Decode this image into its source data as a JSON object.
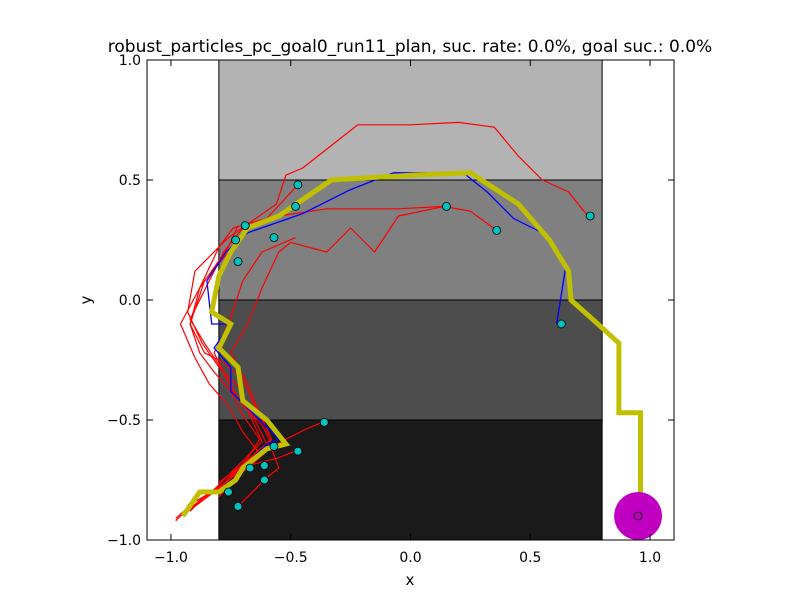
{
  "chart_data": {
    "type": "line",
    "title": "robust_particles_pc_goal0_run11_plan, suc. rate: 0.0%, goal suc.: 0.0%",
    "xlabel": "x",
    "ylabel": "y",
    "xlim": [
      -1.1,
      1.1
    ],
    "ylim": [
      -1.0,
      1.0
    ],
    "xticks": [
      "−1.0",
      "−0.5",
      "0.0",
      "0.5",
      "1.0"
    ],
    "yticks": [
      "−1.0",
      "−0.5",
      "0.0",
      "0.5",
      "1.0"
    ],
    "xtick_values": [
      -1.0,
      -0.5,
      0.0,
      0.5,
      1.0
    ],
    "ytick_values": [
      -1.0,
      -0.5,
      0.0,
      0.5,
      1.0
    ],
    "grid": false,
    "regions": [
      {
        "x": [
          -0.8,
          0.8
        ],
        "y": [
          0.5,
          1.0
        ],
        "color": "#b3b3b3"
      },
      {
        "x": [
          -0.8,
          0.8
        ],
        "y": [
          0.0,
          0.5
        ],
        "color": "#808080"
      },
      {
        "x": [
          -0.8,
          0.8
        ],
        "y": [
          -0.5,
          0.0
        ],
        "color": "#4d4d4d"
      },
      {
        "x": [
          -0.8,
          0.8
        ],
        "y": [
          -1.0,
          -0.5
        ],
        "color": "#1a1a1a"
      }
    ],
    "goal": {
      "x": 0.95,
      "y": -0.9,
      "radius": 0.1,
      "color": "#c000c0"
    },
    "plan": {
      "color": "#c0c000",
      "x": [
        -0.95,
        -0.88,
        -0.8,
        -0.73,
        -0.7,
        -0.6,
        -0.52,
        -0.6,
        -0.7,
        -0.72,
        -0.8,
        -0.75,
        -0.83,
        -0.8,
        -0.75,
        -0.68,
        -0.55,
        -0.33,
        0.0,
        0.25,
        0.45,
        0.58,
        0.66,
        0.67,
        0.76,
        0.87,
        0.87,
        0.96,
        0.96
      ],
      "y": [
        -0.9,
        -0.8,
        -0.8,
        -0.75,
        -0.7,
        -0.62,
        -0.6,
        -0.5,
        -0.42,
        -0.28,
        -0.2,
        -0.1,
        -0.05,
        0.1,
        0.2,
        0.3,
        0.35,
        0.5,
        0.52,
        0.53,
        0.4,
        0.25,
        0.12,
        0.0,
        -0.08,
        -0.18,
        -0.47,
        -0.47,
        -0.9
      ]
    },
    "blue_path": {
      "color": "#0000ff",
      "x": [
        -0.95,
        -0.88,
        -0.8,
        -0.72,
        -0.68,
        -0.6,
        -0.55,
        -0.68,
        -0.75,
        -0.75,
        -0.82,
        -0.75,
        -0.83,
        -0.85,
        -0.77,
        -0.68,
        -0.45,
        -0.25,
        -0.07,
        0.22,
        0.32,
        0.43,
        0.57,
        0.65,
        0.61
      ],
      "y": [
        -0.9,
        -0.8,
        -0.8,
        -0.73,
        -0.68,
        -0.6,
        -0.58,
        -0.45,
        -0.38,
        -0.28,
        -0.2,
        -0.1,
        -0.1,
        0.08,
        0.2,
        0.28,
        0.36,
        0.46,
        0.53,
        0.53,
        0.45,
        0.34,
        0.27,
        0.15,
        -0.1
      ]
    },
    "red_paths": [
      {
        "x": [
          -0.98,
          -0.9,
          -0.83,
          -0.75,
          -0.7,
          -0.62,
          -0.68,
          -0.74,
          -0.8,
          -0.86,
          -0.92,
          -0.78,
          -0.7
        ],
        "y": [
          -0.92,
          -0.84,
          -0.8,
          -0.72,
          -0.67,
          -0.59,
          -0.46,
          -0.38,
          -0.27,
          -0.18,
          -0.08,
          0.2,
          0.3
        ]
      },
      {
        "x": [
          -0.96,
          -0.86,
          -0.8,
          -0.72,
          -0.65,
          -0.58,
          -0.64,
          -0.7,
          -0.78,
          -0.86,
          -0.92,
          -0.88,
          -0.76,
          -0.72
        ],
        "y": [
          -0.9,
          -0.82,
          -0.78,
          -0.72,
          -0.65,
          -0.58,
          -0.46,
          -0.33,
          -0.26,
          -0.22,
          -0.1,
          0.05,
          0.22,
          0.31
        ]
      },
      {
        "x": [
          -0.92,
          -0.84,
          -0.77,
          -0.7,
          -0.63,
          -0.7,
          -0.76,
          -0.84,
          -0.9,
          -0.96,
          -0.88,
          -0.8,
          -0.74,
          -0.6,
          -0.47
        ],
        "y": [
          -0.88,
          -0.8,
          -0.76,
          -0.7,
          -0.64,
          -0.55,
          -0.44,
          -0.35,
          -0.24,
          -0.1,
          0.05,
          0.22,
          0.3,
          0.34,
          0.48
        ]
      },
      {
        "x": [
          -0.95,
          -0.87,
          -0.78,
          -0.72,
          -0.6,
          -0.66,
          -0.72,
          -0.8,
          -0.87,
          -0.93,
          -0.9,
          -0.76,
          -0.56,
          -0.52,
          -0.45,
          -0.22,
          0.0,
          0.2,
          0.35,
          0.45,
          0.55,
          0.66,
          0.74
        ],
        "y": [
          -0.9,
          -0.83,
          -0.77,
          -0.7,
          -0.6,
          -0.48,
          -0.36,
          -0.28,
          -0.18,
          -0.05,
          0.12,
          0.26,
          0.4,
          0.52,
          0.55,
          0.73,
          0.73,
          0.74,
          0.72,
          0.6,
          0.5,
          0.45,
          0.35
        ]
      },
      {
        "x": [
          -0.9,
          -0.82,
          -0.75,
          -0.68,
          -0.63,
          -0.7,
          -0.75,
          -0.82,
          -0.88,
          -0.92,
          -0.86,
          -0.76,
          -0.68,
          -0.55,
          -0.35,
          -0.05,
          0.14,
          0.25,
          0.36
        ],
        "y": [
          -0.86,
          -0.8,
          -0.74,
          -0.66,
          -0.58,
          -0.48,
          -0.38,
          -0.3,
          -0.22,
          -0.1,
          0.08,
          0.2,
          0.3,
          0.35,
          0.38,
          0.38,
          0.39,
          0.37,
          0.29
        ]
      },
      {
        "x": [
          -0.85,
          -0.77,
          -0.7,
          -0.65,
          -0.58,
          -0.64,
          -0.68,
          -0.75,
          -0.68,
          -0.62,
          -0.55,
          -0.5,
          -0.35,
          -0.25,
          -0.15,
          -0.05,
          0.14
        ],
        "y": [
          -0.82,
          -0.76,
          -0.7,
          -0.64,
          -0.58,
          -0.45,
          -0.35,
          -0.22,
          -0.1,
          0.05,
          0.2,
          0.24,
          0.2,
          0.3,
          0.2,
          0.35,
          0.39
        ]
      },
      {
        "x": [
          -0.98,
          -0.9,
          -0.8,
          -0.74,
          -0.66,
          -0.58,
          -0.62,
          -0.7,
          -0.76,
          -0.82,
          -0.76,
          -0.7,
          -0.62,
          -0.48
        ],
        "y": [
          -0.91,
          -0.84,
          -0.79,
          -0.72,
          -0.66,
          -0.6,
          -0.52,
          -0.44,
          -0.34,
          -0.22,
          -0.1,
          0.08,
          0.2,
          0.26
        ]
      },
      {
        "x": [
          -0.8,
          -0.74,
          -0.68,
          -0.6,
          -0.52,
          -0.44,
          -0.37
        ],
        "y": [
          -0.82,
          -0.75,
          -0.7,
          -0.63,
          -0.58,
          -0.54,
          -0.51
        ]
      },
      {
        "x": [
          -0.8,
          -0.72,
          -0.64,
          -0.56,
          -0.48
        ],
        "y": [
          -0.76,
          -0.7,
          -0.68,
          -0.66,
          -0.63
        ]
      },
      {
        "x": [
          -0.72,
          -0.66,
          -0.6,
          -0.55,
          -0.58,
          -0.52
        ],
        "y": [
          -0.86,
          -0.8,
          -0.74,
          -0.7,
          -0.62,
          -0.58
        ]
      }
    ],
    "particles": {
      "color": "#00c0c0",
      "x": [
        -0.47,
        -0.48,
        -0.69,
        -0.73,
        -0.57,
        -0.72,
        0.15,
        0.36,
        0.75,
        0.63,
        -0.36,
        -0.47,
        -0.57,
        -0.61,
        -0.61,
        -0.67,
        -0.76,
        -0.72
      ],
      "y": [
        0.48,
        0.39,
        0.31,
        0.25,
        0.26,
        0.16,
        0.39,
        0.29,
        0.35,
        -0.1,
        -0.51,
        -0.63,
        -0.61,
        -0.69,
        -0.75,
        -0.7,
        -0.8,
        -0.86
      ]
    }
  }
}
